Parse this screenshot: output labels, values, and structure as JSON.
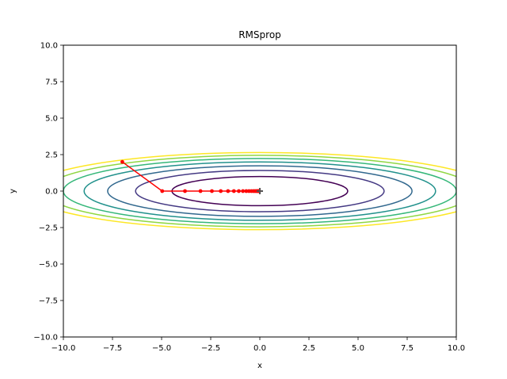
{
  "chart_data": {
    "type": "line",
    "title": "RMSprop",
    "xlabel": "x",
    "ylabel": "y",
    "xlim": [
      -10,
      10
    ],
    "ylim": [
      -10,
      10
    ],
    "grid": false,
    "x_ticks": [
      "−10.0",
      "−7.5",
      "−5.0",
      "−2.5",
      "0.0",
      "2.5",
      "5.0",
      "7.5",
      "10.0"
    ],
    "y_ticks": [
      "−10.0",
      "−7.5",
      "−5.0",
      "−2.5",
      "0.0",
      "2.5",
      "5.0",
      "7.5",
      "10.0"
    ],
    "contours": {
      "function": "x^2/20 + y^2",
      "levels": [
        1,
        2,
        3,
        4,
        5,
        6,
        7
      ],
      "colors": [
        "#440154",
        "#443983",
        "#31688e",
        "#21918c",
        "#35b779",
        "#90d743",
        "#fde725"
      ]
    },
    "series": [
      {
        "color": "#ff0000",
        "x": [
          -7.0,
          -4.97,
          -3.81,
          -3.02,
          -2.44,
          -1.99,
          -1.62,
          -1.32,
          -1.07,
          -0.86,
          -0.69,
          -0.55,
          -0.43,
          -0.33,
          -0.25,
          -0.18,
          -0.13,
          -0.08,
          -0.05,
          -0.03
        ],
        "y": [
          2.0,
          0.0,
          0.0,
          0.0,
          0.0,
          0.0,
          0.0,
          0.0,
          0.0,
          0.0,
          0.0,
          0.0,
          0.0,
          0.0,
          0.0,
          0.0,
          0.0,
          0.0,
          0.0,
          0.0
        ]
      }
    ],
    "minimum_marker": {
      "x": 0,
      "y": 0,
      "marker": "plus",
      "color": "#555555"
    }
  }
}
